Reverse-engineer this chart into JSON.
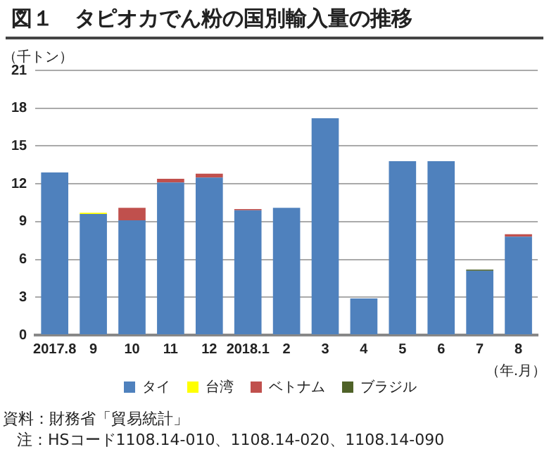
{
  "chart_data": {
    "type": "bar",
    "title": "図１　タピオカでん粉の国別輸入量の推移",
    "ylabel": "（千トン）",
    "xlabel": "（年.月）",
    "categories": [
      "2017.8",
      "9",
      "10",
      "11",
      "12",
      "2018.1",
      "2",
      "3",
      "4",
      "5",
      "6",
      "7",
      "8"
    ],
    "series": [
      {
        "name": "タイ",
        "color": "#4f81bd",
        "values": [
          12.9,
          9.6,
          9.1,
          12.1,
          12.5,
          9.9,
          10.1,
          17.2,
          2.9,
          13.8,
          13.8,
          5.1,
          7.8
        ]
      },
      {
        "name": "台湾",
        "color": "#ffff00",
        "values": [
          null,
          0.1,
          null,
          null,
          null,
          null,
          null,
          null,
          null,
          null,
          null,
          null,
          null
        ]
      },
      {
        "name": "ベトナム",
        "color": "#c0504d",
        "values": [
          null,
          null,
          1.0,
          0.3,
          0.3,
          0.1,
          null,
          null,
          null,
          null,
          null,
          null,
          0.2
        ]
      },
      {
        "name": "ブラジル",
        "color": "#4f6228",
        "values": [
          null,
          null,
          null,
          null,
          null,
          null,
          null,
          null,
          null,
          null,
          null,
          0.1,
          null
        ]
      }
    ],
    "stacked": true,
    "ylim": [
      0,
      21
    ],
    "yticks": [
      0,
      3,
      6,
      9,
      12,
      15,
      18,
      21
    ],
    "grid": "y",
    "legend": "bottom",
    "annotations": [
      "資料：財務省「貿易統計」",
      "注：HSコード1108.14-010、1108.14-020、1108.14-090"
    ]
  }
}
